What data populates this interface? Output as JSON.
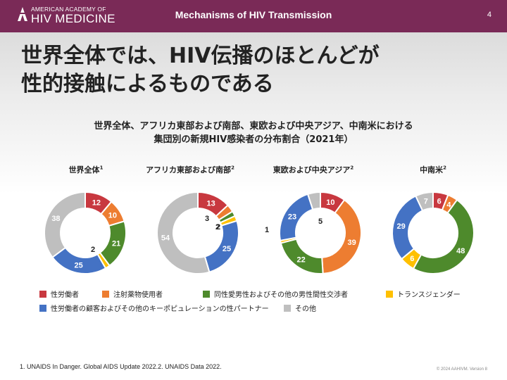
{
  "header": {
    "logo_line1": "AMERICAN ACADEMY OF",
    "logo_line2": "HIV MEDICINE",
    "title": "Mechanisms of HIV Transmission",
    "page_number": "4"
  },
  "headline": {
    "line1": "世界全体では、HIV伝播のほとんどが",
    "line2": "性的接触によるものである"
  },
  "chart_data": {
    "type": "donut",
    "title_line1": "世界全体、アフリカ東部および南部、東欧および中央アジア、中南米における",
    "title_line2": "集団別の新規HIV感染者の分布割合（2021年）",
    "categories": [
      "性労働者",
      "注射薬物使用者",
      "同性愛男性およびその他の男性間性交渉者",
      "トランスジェンダー",
      "性労働者の顧客およびその他のキーポピュレーションの性パートナー",
      "その他"
    ],
    "colors": [
      "#c8383f",
      "#ed7d31",
      "#4e8a2c",
      "#ffc000",
      "#4472c4",
      "#bfbfbf"
    ],
    "panels": [
      {
        "name": "世界全体",
        "sup": "1",
        "values": [
          12,
          10,
          21,
          2,
          25,
          38
        ]
      },
      {
        "name": "アフリカ東部および南部",
        "sup": "2",
        "values": [
          13,
          3,
          2,
          2,
          25,
          54
        ]
      },
      {
        "name": "東欧および中央アジア",
        "sup": "2",
        "values": [
          10,
          39,
          22,
          1,
          23,
          5
        ]
      },
      {
        "name": "中南米",
        "sup": "2",
        "values": [
          6,
          4,
          48,
          6,
          29,
          7
        ]
      }
    ]
  },
  "footnote": "1. UNAIDS In Danger. Global AIDS Update 2022.2. UNAIDS Data 2022.",
  "copyright": "© 2024 AAHIVM. Version 8"
}
